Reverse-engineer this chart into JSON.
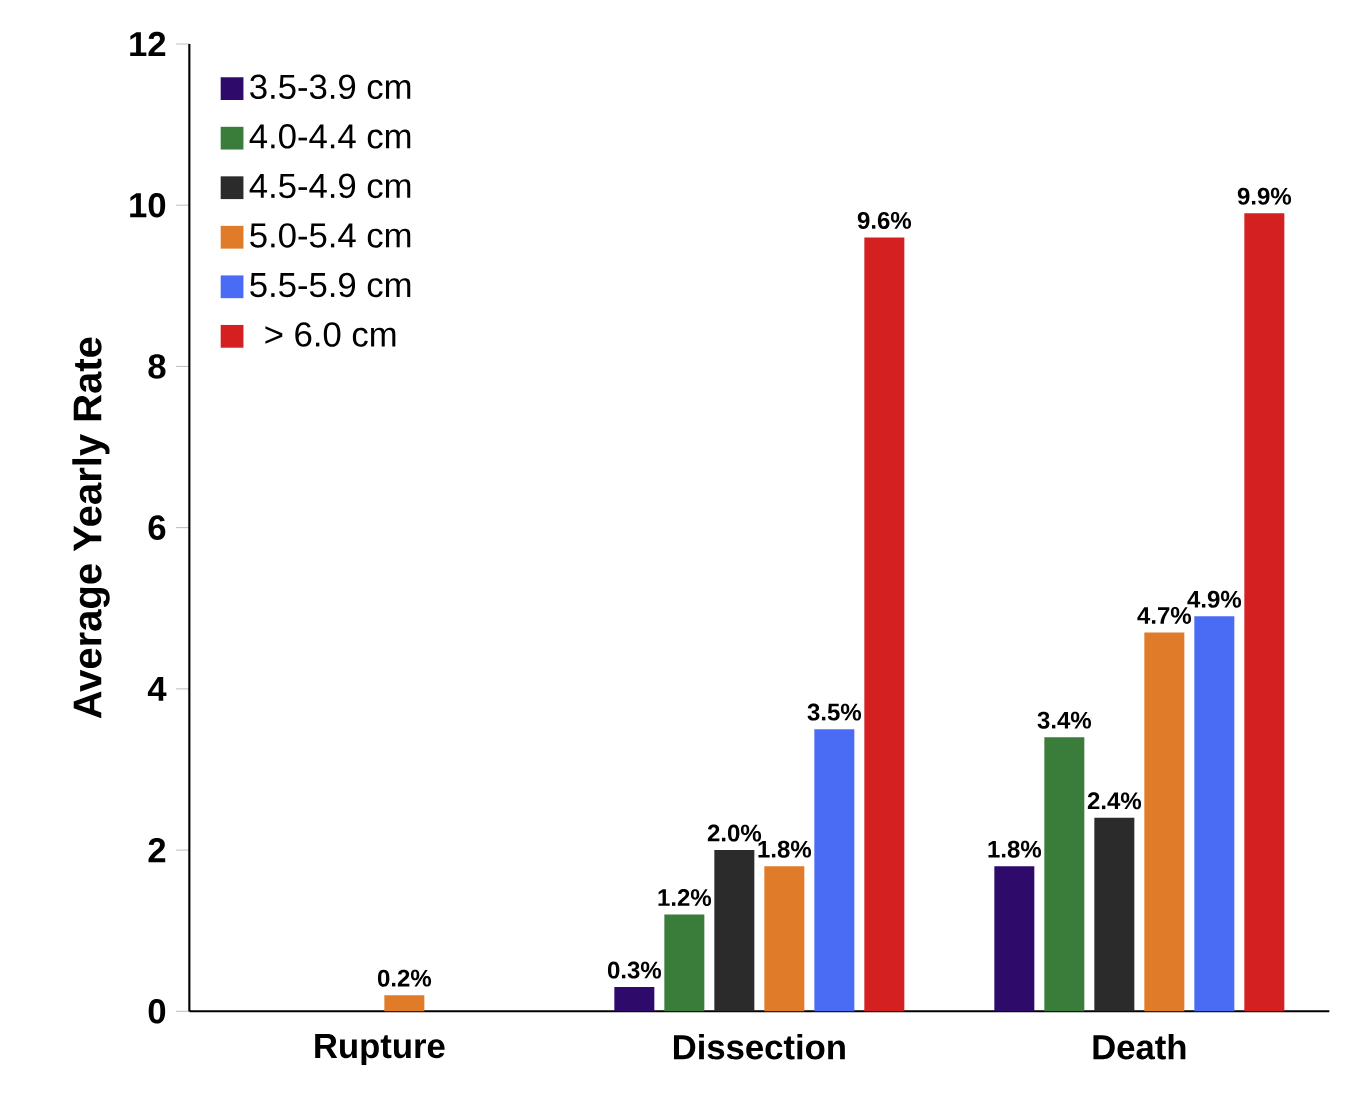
{
  "chart_data": {
    "type": "bar",
    "ylabel": "Average Yearly Rate",
    "categories": [
      "Rupture",
      "Dissection",
      "Death"
    ],
    "ylim": [
      0,
      12
    ],
    "yticks": [
      0,
      2,
      4,
      6,
      8,
      10,
      12
    ],
    "legend": "top left",
    "series": [
      {
        "name": "3.5-3.9 cm",
        "color": "#2e0a6b",
        "values": [
          null,
          0.3,
          1.8
        ],
        "value_labels": [
          null,
          "0.3%",
          "1.8%"
        ]
      },
      {
        "name": "4.0-4.4 cm",
        "color": "#3a7d3a",
        "values": [
          null,
          1.2,
          3.4
        ],
        "value_labels": [
          null,
          "1.2%",
          "3.4%"
        ]
      },
      {
        "name": "4.5-4.9 cm",
        "color": "#2b2b2b",
        "values": [
          null,
          2.0,
          2.4
        ],
        "value_labels": [
          null,
          "2.0%",
          "2.4%"
        ]
      },
      {
        "name": "5.0-5.4 cm",
        "color": "#e07b2a",
        "values": [
          0.2,
          1.8,
          4.7
        ],
        "value_labels": [
          "0.2%",
          "1.8%",
          "4.7%"
        ]
      },
      {
        "name": "5.5-5.9 cm",
        "color": "#4a6cf5",
        "values": [
          null,
          3.5,
          4.9
        ],
        "value_labels": [
          null,
          "3.5%",
          "4.9%"
        ]
      },
      {
        "name": "> 6.0 cm",
        "color": "#d42020",
        "values": [
          null,
          9.6,
          9.9
        ],
        "value_labels": [
          null,
          "9.6%",
          "9.9%"
        ]
      }
    ]
  }
}
